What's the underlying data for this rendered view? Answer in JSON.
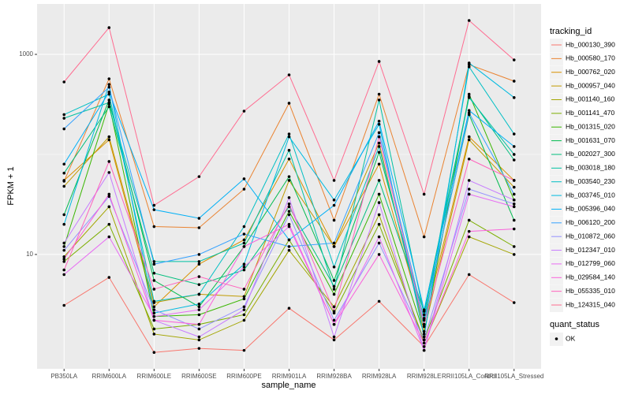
{
  "chart_data": {
    "type": "line",
    "log_y": true,
    "x_label": "sample_name",
    "y_label": "FPKM + 1",
    "legend_title": "tracking_id",
    "point_legend_title": "quant_status",
    "point_legend_label": "OK",
    "point_color": "#000000",
    "panel_color": "#EBEBEB",
    "categories": [
      "PB350LA",
      "RRIM600LA",
      "RRIM600LE",
      "RRIM600SE",
      "RRIM600PE",
      "RRIM901LA",
      "RRIM928BA",
      "RRIM928LA",
      "RRIM928LE",
      "RRII105LA_Control",
      "RRII105LA_Stressed"
    ],
    "ylim": [
      0.72,
      3192
    ],
    "yticks": [
      10,
      1000
    ],
    "y_minor_gridlines": [
      100
    ],
    "series": [
      {
        "name": "Hb_000130_390",
        "color": "#F8766D",
        "values": [
          3.1,
          5.9,
          1.05,
          1.15,
          1.1,
          2.9,
          1.4,
          3.4,
          1.2,
          6.3,
          3.3
        ]
      },
      {
        "name": "Hb_000580_170",
        "color": "#EA8331",
        "values": [
          54,
          570,
          19,
          18.5,
          45,
          325,
          22,
          400,
          15,
          790,
          540
        ]
      },
      {
        "name": "Hb_000762_020",
        "color": "#D89000",
        "values": [
          55,
          140,
          3.0,
          8.0,
          14,
          90,
          12,
          80,
          2.0,
          150,
          55
        ]
      },
      {
        "name": "Hb_000957_040",
        "color": "#C09B00",
        "values": [
          48,
          150,
          3.3,
          4.0,
          3.8,
          55,
          12,
          130,
          1.7,
          140,
          47
        ]
      },
      {
        "name": "Hb_001140_160",
        "color": "#A3A500",
        "values": [
          9.5,
          30,
          1.6,
          1.4,
          2.2,
          11,
          3.0,
          25,
          1.3,
          15,
          10
        ]
      },
      {
        "name": "Hb_001141_470",
        "color": "#7CAE00",
        "values": [
          8.5,
          20,
          1.8,
          2.0,
          2.5,
          14,
          2.6,
          20,
          1.4,
          22,
          12
        ]
      },
      {
        "name": "Hb_001315_020",
        "color": "#39B600",
        "values": [
          12,
          320,
          2.4,
          2.5,
          3.6,
          27,
          4.0,
          40,
          1.6,
          400,
          35
        ]
      },
      {
        "name": "Hb_001631_070",
        "color": "#00BB4E",
        "values": [
          25,
          350,
          5.5,
          3.0,
          12,
          60,
          5.5,
          105,
          2.3,
          250,
          22
        ]
      },
      {
        "name": "Hb_002027_300",
        "color": "#00BF7D",
        "values": [
          65,
          300,
          6.5,
          5.0,
          7.0,
          30,
          4.8,
          55,
          2.7,
          380,
          88
        ]
      },
      {
        "name": "Hb_003018_180",
        "color": "#00C1A3",
        "values": [
          230,
          330,
          8.5,
          8.5,
          13,
          110,
          4.5,
          350,
          2.5,
          370,
          100
        ]
      },
      {
        "name": "Hb_003540_230",
        "color": "#00BFC4",
        "values": [
          250,
          400,
          3.4,
          4.0,
          19,
          160,
          7.5,
          120,
          1.9,
          750,
          160
        ]
      },
      {
        "name": "Hb_003745_010",
        "color": "#00BAE0",
        "values": [
          20,
          500,
          2.6,
          3.2,
          8.0,
          150,
          35,
          200,
          1.5,
          820,
          370
        ]
      },
      {
        "name": "Hb_005396_040",
        "color": "#00B0F6",
        "values": [
          80,
          420,
          28,
          23,
          57,
          14,
          31,
          215,
          2.8,
          275,
          120
        ]
      },
      {
        "name": "Hb_006120_200",
        "color": "#35A2FF",
        "values": [
          180,
          470,
          8.0,
          10,
          16,
          12,
          13,
          165,
          2.2,
          260,
          40
        ]
      },
      {
        "name": "Hb_010872_060",
        "color": "#9590FF",
        "values": [
          11,
          38,
          2.8,
          1.8,
          3.0,
          25,
          2.2,
          13,
          1.4,
          45,
          32
        ]
      },
      {
        "name": "Hb_012347_010",
        "color": "#C77CFF",
        "values": [
          13,
          66,
          2.2,
          1.5,
          2.8,
          37,
          1.5,
          33,
          1.1,
          55,
          35
        ]
      },
      {
        "name": "Hb_012799_060",
        "color": "#E76BF3",
        "values": [
          6.3,
          15,
          2.4,
          2.8,
          7.5,
          19,
          2.0,
          15,
          1.1,
          40,
          30
        ]
      },
      {
        "name": "Hb_029584_140",
        "color": "#FA62DB",
        "values": [
          9.0,
          40,
          2.2,
          2.0,
          12,
          20,
          2.0,
          10,
          1.3,
          17,
          18
        ]
      },
      {
        "name": "Hb_055335_010",
        "color": "#FF62BC",
        "values": [
          7,
          85,
          4.5,
          6.0,
          4.5,
          32,
          2.7,
          150,
          2.0,
          90,
          55
        ]
      },
      {
        "name": "Hb_124315_040",
        "color": "#FF6C91",
        "values": [
          530,
          1850,
          31,
          60,
          271,
          624,
          55,
          850,
          40,
          2180,
          880
        ]
      }
    ]
  }
}
